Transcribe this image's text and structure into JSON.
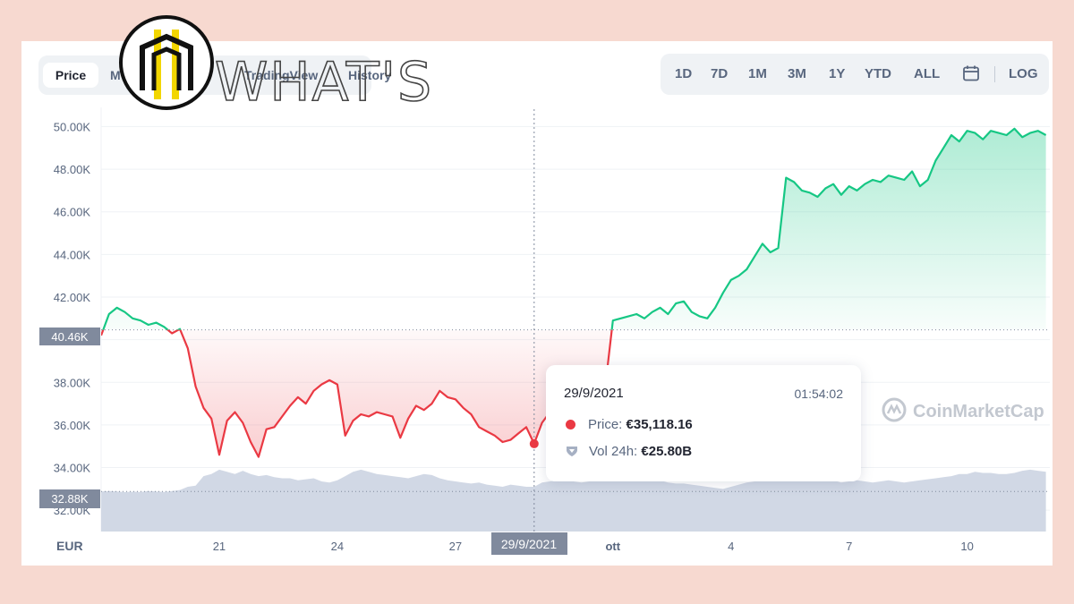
{
  "tabs": [
    {
      "label": "Price",
      "active": true
    },
    {
      "label": "M",
      "active": false
    },
    {
      "label": "TradingView",
      "active": false
    },
    {
      "label": "History",
      "active": false
    }
  ],
  "watermark": "WHAT'S",
  "ranges": [
    "1D",
    "7D",
    "1M",
    "3M",
    "1Y",
    "YTD",
    "ALL"
  ],
  "log_label": "LOG",
  "currency": "EUR",
  "tooltip": {
    "date": "29/9/2021",
    "time": "01:54:02",
    "price_label": "Price:",
    "price_value": "€35,118.16",
    "vol_label": "Vol 24h:",
    "vol_value": "€25.80B"
  },
  "brand": "CoinMarketCap",
  "markers": {
    "open_price": "40.46K",
    "volume_level": "32.88K",
    "crosshair_date": "29/9/2021"
  },
  "colors": {
    "up": "#16c784",
    "down": "#ea3943",
    "volume": "#cfd6e4"
  },
  "chart_data": {
    "type": "line",
    "y_tick_labels": [
      "50.00K",
      "48.00K",
      "46.00K",
      "44.00K",
      "42.00K",
      "40.00K",
      "38.00K",
      "36.00K",
      "34.00K",
      "32.00K"
    ],
    "y_ticks": [
      50000,
      48000,
      46000,
      44000,
      42000,
      40000,
      38000,
      36000,
      34000,
      32000
    ],
    "ylim": [
      31000,
      50900
    ],
    "x_tick_labels": [
      "21",
      "24",
      "27",
      "ott",
      "4",
      "7",
      "10"
    ],
    "x_ticks": [
      3.0,
      6.0,
      9.0,
      13.0,
      16.0,
      19.0,
      22.0
    ],
    "xlim": [
      0,
      24.1
    ],
    "reference_price": 40460,
    "crosshair_x": 11.0,
    "x": [
      0,
      0.2,
      0.4,
      0.6,
      0.8,
      1.0,
      1.2,
      1.4,
      1.6,
      1.8,
      2.0,
      2.2,
      2.4,
      2.6,
      2.8,
      3.0,
      3.2,
      3.4,
      3.6,
      3.8,
      4.0,
      4.2,
      4.4,
      4.6,
      4.8,
      5.0,
      5.2,
      5.4,
      5.6,
      5.8,
      6.0,
      6.2,
      6.4,
      6.6,
      6.8,
      7.0,
      7.2,
      7.4,
      7.6,
      7.8,
      8.0,
      8.2,
      8.4,
      8.6,
      8.8,
      9.0,
      9.2,
      9.4,
      9.6,
      9.8,
      10.0,
      10.2,
      10.4,
      10.6,
      10.8,
      11.0,
      11.2,
      11.4,
      11.6,
      11.8,
      12.0,
      12.2,
      12.4,
      12.6,
      12.8,
      13.0,
      13.2,
      13.4,
      13.6,
      13.8,
      14.0,
      14.2,
      14.4,
      14.6,
      14.8,
      15.0,
      15.2,
      15.4,
      15.6,
      15.8,
      16.0,
      16.2,
      16.4,
      16.6,
      16.8,
      17.0,
      17.2,
      17.4,
      17.6,
      17.8,
      18.0,
      18.2,
      18.4,
      18.6,
      18.8,
      19.0,
      19.2,
      19.4,
      19.6,
      19.8,
      20.0,
      20.2,
      20.4,
      20.6,
      20.8,
      21.0,
      21.2,
      21.4,
      21.6,
      21.8,
      22.0,
      22.2,
      22.4,
      22.6,
      22.8,
      23.0,
      23.2,
      23.4,
      23.6,
      23.8,
      24.0
    ],
    "price": [
      40200,
      41200,
      41500,
      41300,
      41000,
      40900,
      40700,
      40800,
      40600,
      40300,
      40500,
      39600,
      37800,
      36800,
      36300,
      34600,
      36200,
      36600,
      36100,
      35200,
      34500,
      35800,
      35900,
      36400,
      36900,
      37300,
      37000,
      37600,
      37900,
      38100,
      37900,
      35500,
      36200,
      36500,
      36400,
      36600,
      36500,
      36400,
      35400,
      36300,
      36900,
      36700,
      37000,
      37600,
      37300,
      37200,
      36800,
      36500,
      35900,
      35700,
      35500,
      35200,
      35300,
      35600,
      35900,
      35118,
      36100,
      36600,
      36400,
      36200,
      36100,
      36300,
      36200,
      36400,
      37700,
      40900,
      41000,
      41100,
      41200,
      41000,
      41300,
      41500,
      41200,
      41700,
      41800,
      41300,
      41100,
      41000,
      41500,
      42200,
      42800,
      43000,
      43300,
      43900,
      44500,
      44100,
      44300,
      47600,
      47400,
      47000,
      46900,
      46700,
      47100,
      47300,
      46800,
      47200,
      47000,
      47300,
      47500,
      47400,
      47700,
      47600,
      47500,
      47900,
      47200,
      47500,
      48400,
      49000,
      49600,
      49300,
      49800,
      49700,
      49400,
      49800,
      49700,
      49600,
      49900,
      49500,
      49700,
      49800,
      49600
    ],
    "volume": [
      32880,
      32900,
      32880,
      32850,
      32870,
      32860,
      32900,
      32880,
      32860,
      32900,
      32950,
      33100,
      33150,
      33600,
      33700,
      33900,
      33800,
      33700,
      33850,
      33700,
      33600,
      33650,
      33550,
      33500,
      33500,
      33400,
      33450,
      33500,
      33350,
      33300,
      33400,
      33600,
      33800,
      33900,
      33800,
      33700,
      33650,
      33600,
      33550,
      33500,
      33600,
      33700,
      33650,
      33500,
      33400,
      33350,
      33300,
      33250,
      33300,
      33200,
      33150,
      33100,
      33200,
      33150,
      33100,
      33100,
      33300,
      33350,
      33400,
      33400,
      33350,
      33300,
      33350,
      33400,
      33500,
      33650,
      33700,
      33700,
      33750,
      33600,
      33500,
      33400,
      33300,
      33250,
      33250,
      33200,
      33150,
      33100,
      33050,
      33000,
      33100,
      33200,
      33300,
      33350,
      33500,
      33600,
      33400,
      33500,
      33450,
      33450,
      33350,
      33400,
      33450,
      33400,
      33300,
      33350,
      33400,
      33350,
      33300,
      33350,
      33400,
      33350,
      33300,
      33350,
      33400,
      33450,
      33500,
      33550,
      33600,
      33700,
      33700,
      33800,
      33750,
      33750,
      33700,
      33700,
      33750,
      33850,
      33900,
      33850,
      33800
    ]
  }
}
